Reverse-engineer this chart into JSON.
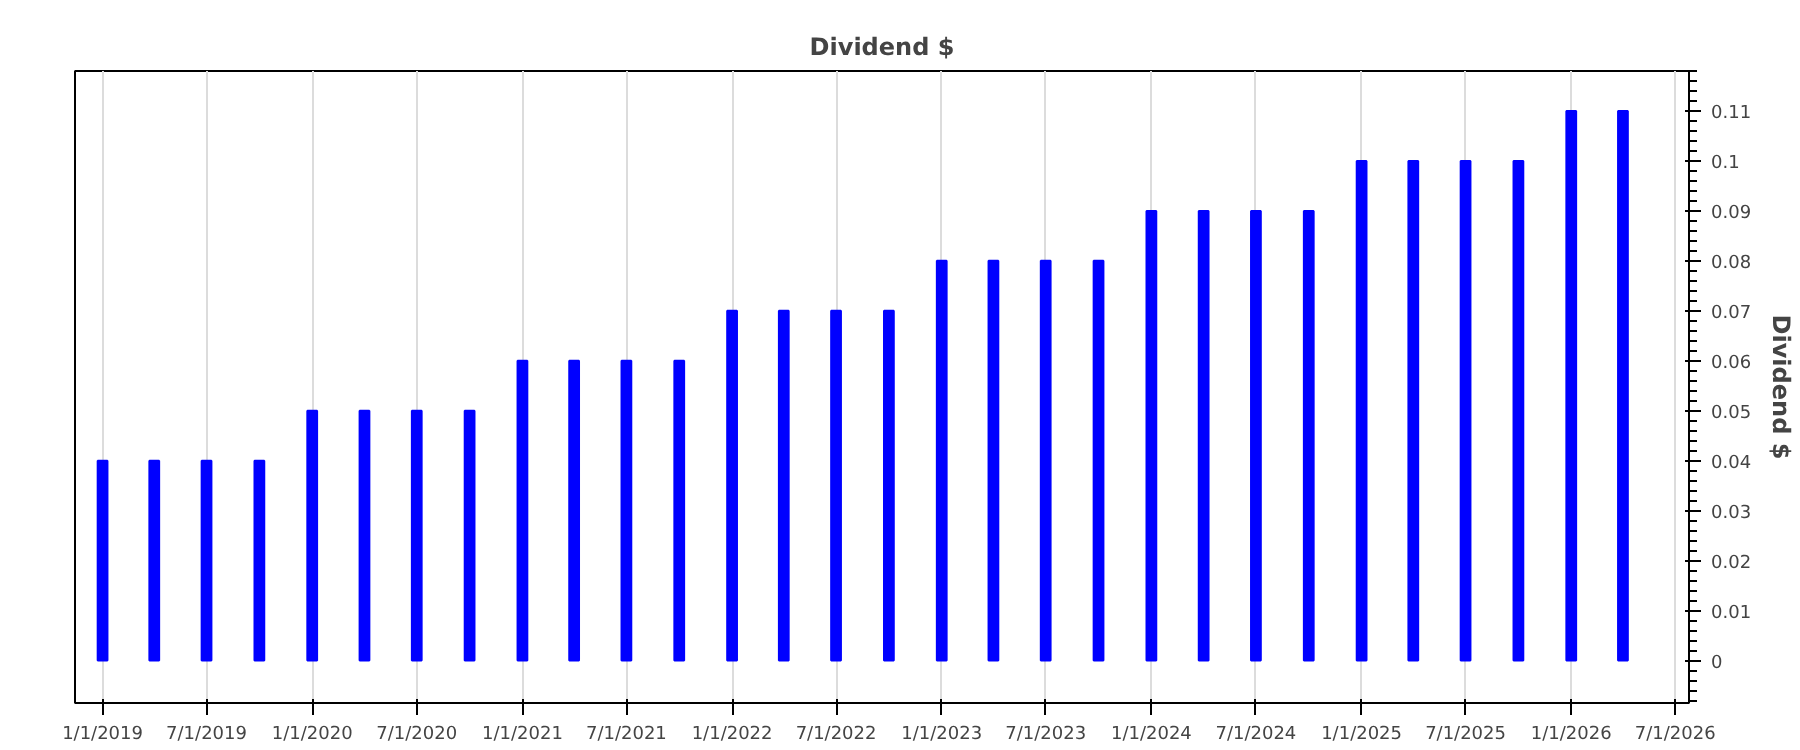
{
  "chart_data": {
    "type": "bar",
    "title": "Dividend $",
    "ylabel": "Dividend $",
    "x": [
      "2019-01-01",
      "2019-04-01",
      "2019-07-01",
      "2019-10-01",
      "2020-01-01",
      "2020-04-01",
      "2020-07-01",
      "2020-10-01",
      "2021-01-01",
      "2021-04-01",
      "2021-07-01",
      "2021-10-01",
      "2022-01-01",
      "2022-04-01",
      "2022-07-01",
      "2022-10-01",
      "2023-01-01",
      "2023-04-01",
      "2023-07-01",
      "2023-10-01",
      "2024-01-01",
      "2024-04-01",
      "2024-07-01",
      "2024-10-01",
      "2025-01-01",
      "2025-04-01",
      "2025-07-01",
      "2025-10-01",
      "2026-01-01",
      "2026-04-01"
    ],
    "values": [
      0.04,
      0.04,
      0.04,
      0.04,
      0.05,
      0.05,
      0.05,
      0.05,
      0.06,
      0.06,
      0.06,
      0.06,
      0.07,
      0.07,
      0.07,
      0.07,
      0.08,
      0.08,
      0.08,
      0.08,
      0.09,
      0.09,
      0.09,
      0.09,
      0.1,
      0.1,
      0.1,
      0.1,
      0.11,
      0.11
    ],
    "color": "#0000ff",
    "xlim": [
      "2018-11-14",
      "2026-07-25"
    ],
    "xticks": [
      {
        "value": "2019-01-01",
        "label": "1/1/2019"
      },
      {
        "value": "2019-07-01",
        "label": "7/1/2019"
      },
      {
        "value": "2020-01-01",
        "label": "1/1/2020"
      },
      {
        "value": "2020-07-01",
        "label": "7/1/2020"
      },
      {
        "value": "2021-01-01",
        "label": "1/1/2021"
      },
      {
        "value": "2021-07-01",
        "label": "7/1/2021"
      },
      {
        "value": "2022-01-01",
        "label": "1/1/2022"
      },
      {
        "value": "2022-07-01",
        "label": "7/1/2022"
      },
      {
        "value": "2023-01-01",
        "label": "1/1/2023"
      },
      {
        "value": "2023-07-01",
        "label": "7/1/2023"
      },
      {
        "value": "2024-01-01",
        "label": "1/1/2024"
      },
      {
        "value": "2024-07-01",
        "label": "7/1/2024"
      },
      {
        "value": "2025-01-01",
        "label": "1/1/2025"
      },
      {
        "value": "2025-07-01",
        "label": "7/1/2025"
      },
      {
        "value": "2026-01-01",
        "label": "1/1/2026"
      },
      {
        "value": "2026-07-01",
        "label": "7/1/2026"
      }
    ],
    "ylim": [
      -0.0085,
      0.118
    ],
    "yticks": [
      0,
      0.01,
      0.02,
      0.03,
      0.04,
      0.05,
      0.06,
      0.07,
      0.08,
      0.09,
      0.1,
      0.11
    ],
    "grid": "x"
  }
}
